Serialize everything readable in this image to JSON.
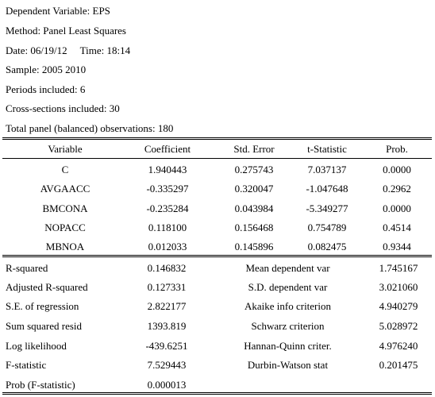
{
  "header": {
    "dependent_variable": "Dependent Variable: EPS",
    "method": "Method: Panel Least Squares",
    "date": "Date: 06/19/12",
    "time": "Time: 18:14",
    "sample": "Sample: 2005 2010",
    "periods": "Periods included: 6",
    "cross_sections": "Cross-sections included: 30",
    "observations": "Total panel (balanced) observations: 180"
  },
  "coef_table": {
    "columns": [
      "Variable",
      "Coefficient",
      "Std. Error",
      "t-Statistic",
      "Prob."
    ],
    "rows": [
      [
        "C",
        "1.940443",
        "0.275743",
        "7.037137",
        "0.0000"
      ],
      [
        "AVGAACC",
        "-0.335297",
        "0.320047",
        "-1.047648",
        "0.2962"
      ],
      [
        "BMCONA",
        "-0.235284",
        "0.043984",
        "-5.349277",
        "0.0000"
      ],
      [
        "NOPACC",
        "0.118100",
        "0.156468",
        "0.754789",
        "0.4514"
      ],
      [
        "MBNOA",
        "0.012033",
        "0.145896",
        "0.082475",
        "0.9344"
      ]
    ]
  },
  "stats": [
    [
      "R-squared",
      "0.146832",
      "Mean dependent var",
      "1.745167"
    ],
    [
      "Adjusted R-squared",
      "0.127331",
      "S.D. dependent var",
      "3.021060"
    ],
    [
      "S.E. of regression",
      "2.822177",
      "Akaike info criterion",
      "4.940279"
    ],
    [
      "Sum squared resid",
      "1393.819",
      "Schwarz criterion",
      "5.028972"
    ],
    [
      "Log likelihood",
      "-439.6251",
      "Hannan-Quinn criter.",
      "4.976240"
    ],
    [
      "F-statistic",
      "7.529443",
      "Durbin-Watson stat",
      "0.201475"
    ],
    [
      "Prob (F-statistic)",
      "0.000013",
      "",
      ""
    ]
  ]
}
